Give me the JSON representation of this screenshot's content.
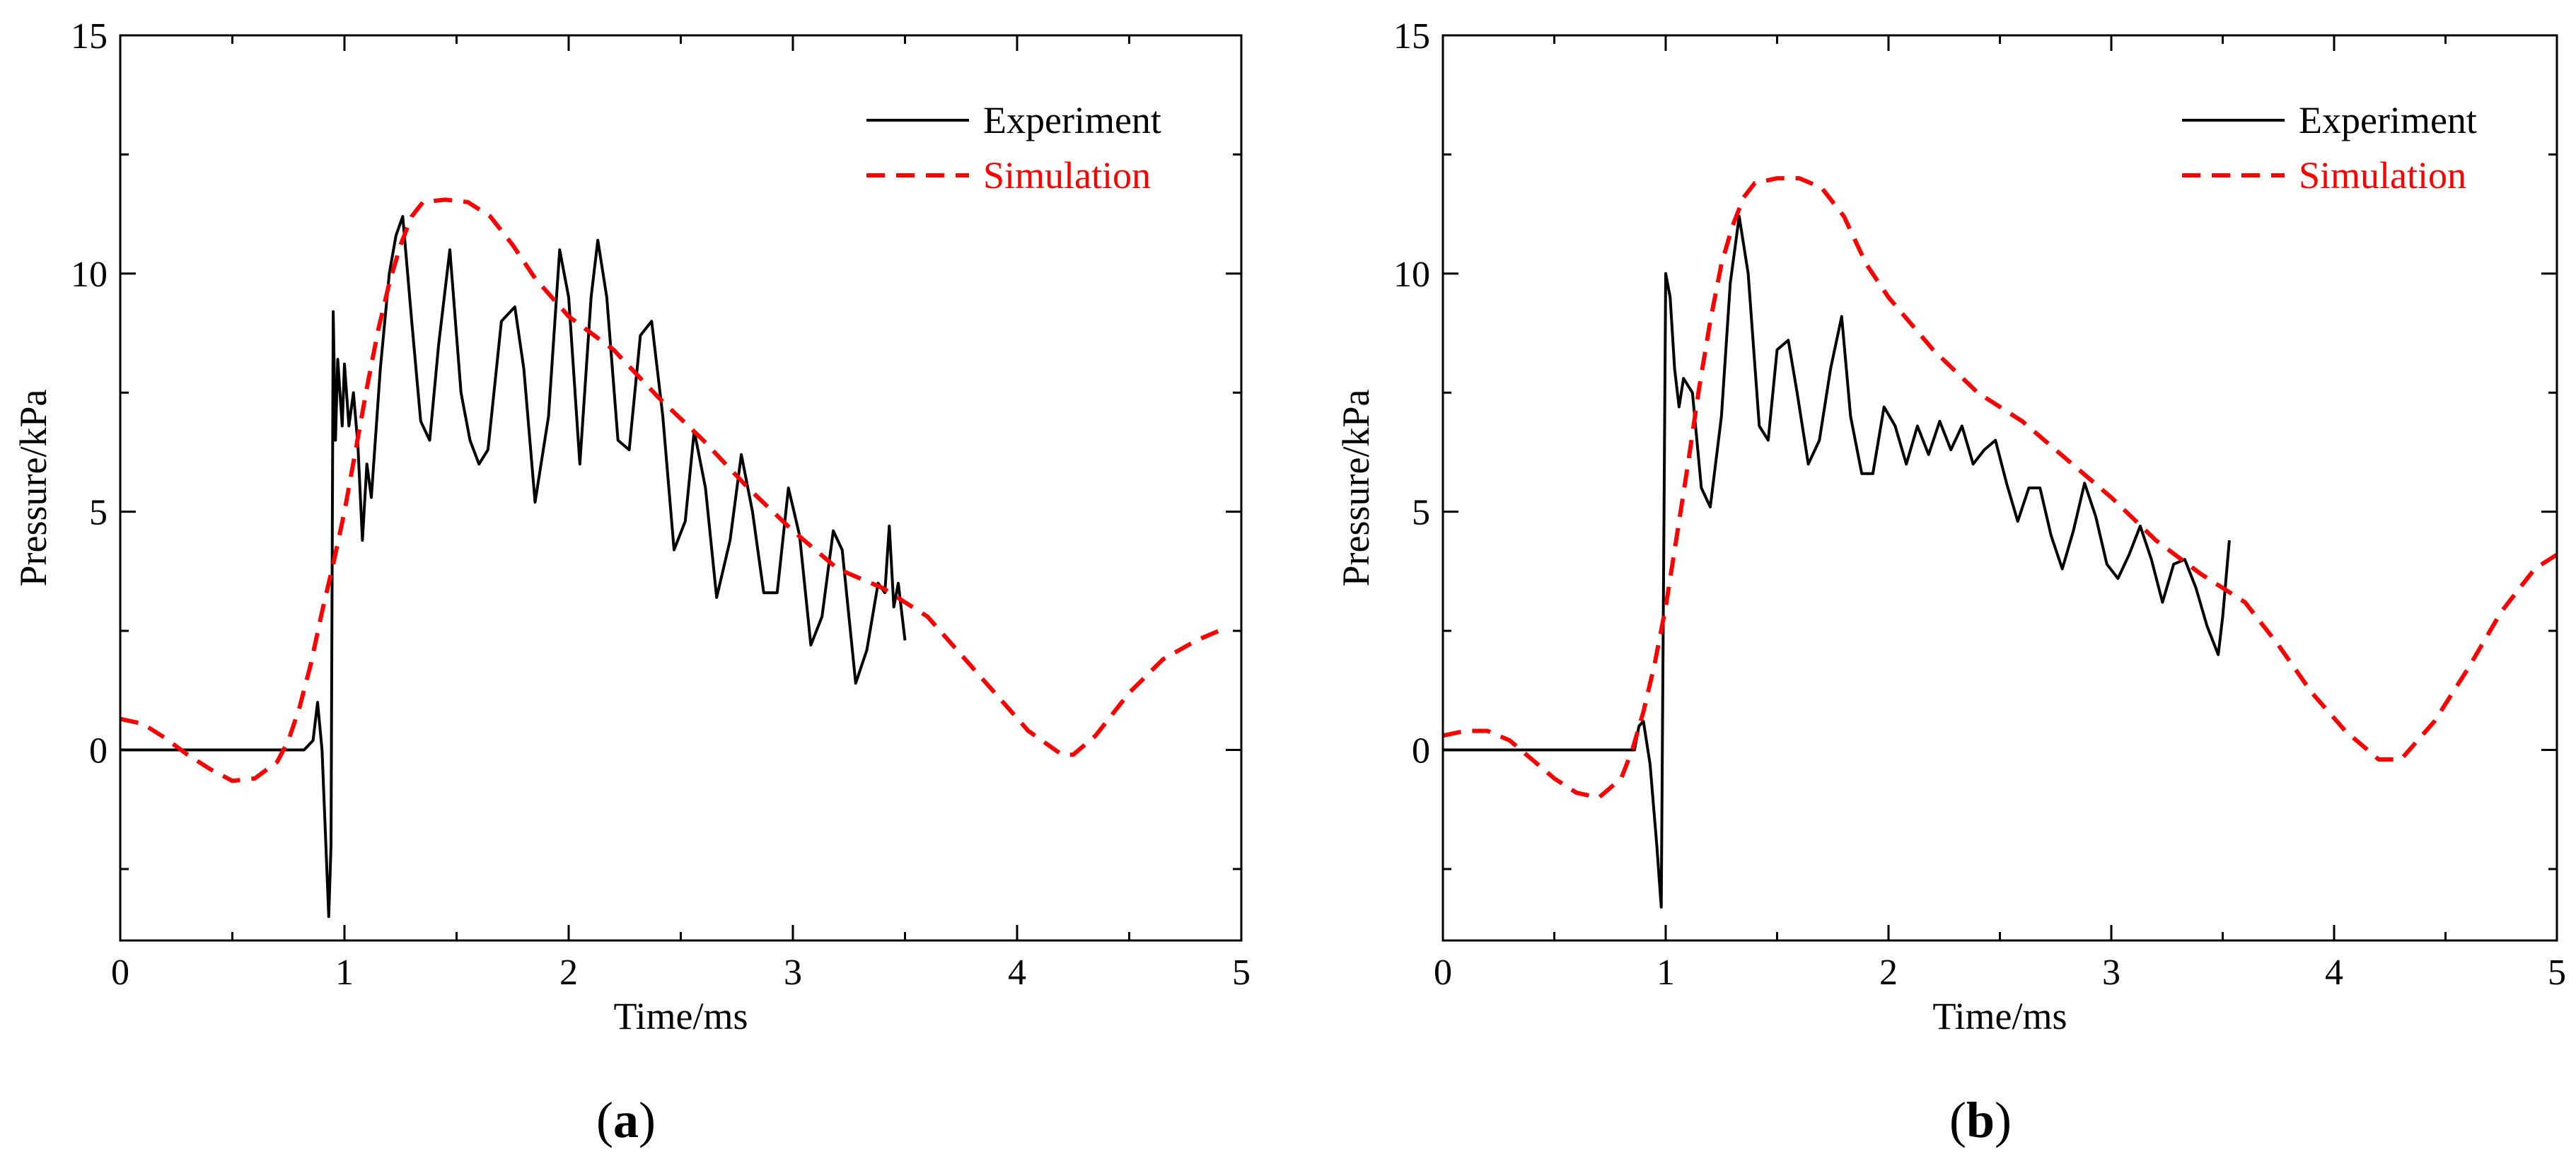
{
  "figure": {
    "panels": [
      {
        "caption_letter": "a",
        "xlabel": "Time/ms",
        "ylabel": "Pressure/kPa",
        "xticks": [
          "0",
          "1",
          "2",
          "3",
          "4",
          "5"
        ],
        "yticks": [
          "0",
          "5",
          "10",
          "15"
        ],
        "legend": {
          "experiment": "Experiment",
          "simulation": "Simulation"
        }
      },
      {
        "caption_letter": "b",
        "xlabel": "Time/ms",
        "ylabel": "Pressure/kPa",
        "xticks": [
          "0",
          "1",
          "2",
          "3",
          "4",
          "5"
        ],
        "yticks": [
          "0",
          "5",
          "10",
          "15"
        ],
        "legend": {
          "experiment": "Experiment",
          "simulation": "Simulation"
        }
      }
    ]
  },
  "chart_data": [
    {
      "type": "line",
      "title": "",
      "xlabel": "Time/ms",
      "ylabel": "Pressure/kPa",
      "xlim": [
        0,
        5
      ],
      "ylim": [
        -4,
        15
      ],
      "grid": false,
      "legend_position": "top-right",
      "series": [
        {
          "name": "Experiment",
          "color": "#000000",
          "style": "solid",
          "x": [
            0,
            0.5,
            0.82,
            0.86,
            0.88,
            0.9,
            0.93,
            0.94,
            0.95,
            0.96,
            0.97,
            0.99,
            1.0,
            1.02,
            1.04,
            1.06,
            1.08,
            1.1,
            1.12,
            1.16,
            1.2,
            1.23,
            1.26,
            1.3,
            1.34,
            1.38,
            1.42,
            1.47,
            1.52,
            1.56,
            1.6,
            1.64,
            1.7,
            1.76,
            1.8,
            1.85,
            1.91,
            1.96,
            2.0,
            2.05,
            2.1,
            2.13,
            2.17,
            2.22,
            2.27,
            2.32,
            2.37,
            2.42,
            2.47,
            2.52,
            2.56,
            2.61,
            2.66,
            2.72,
            2.77,
            2.82,
            2.87,
            2.93,
            2.98,
            3.03,
            3.08,
            3.13,
            3.18,
            3.22,
            3.28,
            3.33,
            3.38,
            3.41,
            3.43,
            3.45,
            3.47,
            3.5
          ],
          "y": [
            0,
            0,
            0,
            0.2,
            1.0,
            0.0,
            -3.5,
            -2.0,
            9.2,
            6.5,
            8.2,
            6.8,
            8.1,
            6.8,
            7.5,
            6.4,
            4.4,
            6.0,
            5.3,
            8.0,
            10.0,
            10.8,
            11.2,
            9.0,
            6.9,
            6.5,
            8.5,
            10.5,
            7.5,
            6.5,
            6.0,
            6.3,
            9.0,
            9.3,
            8.0,
            5.2,
            7.0,
            10.5,
            9.5,
            6.0,
            9.5,
            10.7,
            9.5,
            6.5,
            6.3,
            8.7,
            9.0,
            7.0,
            4.2,
            4.8,
            6.7,
            5.5,
            3.2,
            4.4,
            6.2,
            5.0,
            3.3,
            3.3,
            5.5,
            4.5,
            2.2,
            2.8,
            4.6,
            4.2,
            1.4,
            2.1,
            3.5,
            3.3,
            4.7,
            3.0,
            3.5,
            2.3
          ]
        },
        {
          "name": "Simulation",
          "color": "#ff0000",
          "style": "dashed",
          "x": [
            0,
            0.1,
            0.2,
            0.3,
            0.4,
            0.5,
            0.6,
            0.7,
            0.75,
            0.8,
            0.85,
            0.9,
            0.95,
            1.0,
            1.05,
            1.1,
            1.15,
            1.2,
            1.25,
            1.3,
            1.35,
            1.45,
            1.55,
            1.65,
            1.75,
            1.85,
            2.0,
            2.2,
            2.4,
            2.6,
            2.8,
            3.0,
            3.2,
            3.4,
            3.6,
            3.75,
            3.9,
            4.05,
            4.2,
            4.25,
            4.35,
            4.5,
            4.65,
            4.8,
            4.9
          ],
          "y": [
            0.65,
            0.55,
            0.25,
            -0.1,
            -0.4,
            -0.65,
            -0.6,
            -0.25,
            0.2,
            0.9,
            1.8,
            2.9,
            3.9,
            5.0,
            6.3,
            7.6,
            8.8,
            9.8,
            10.6,
            11.2,
            11.5,
            11.55,
            11.5,
            11.2,
            10.6,
            9.9,
            9.1,
            8.4,
            7.4,
            6.5,
            5.5,
            4.6,
            3.8,
            3.4,
            2.8,
            2.0,
            1.2,
            0.4,
            -0.1,
            -0.1,
            0.3,
            1.2,
            1.9,
            2.3,
            2.5
          ]
        }
      ]
    },
    {
      "type": "line",
      "title": "",
      "xlabel": "Time/ms",
      "ylabel": "Pressure/kPa",
      "xlim": [
        0,
        5
      ],
      "ylim": [
        -4,
        15
      ],
      "grid": false,
      "legend_position": "top-right",
      "series": [
        {
          "name": "Experiment",
          "color": "#000000",
          "style": "solid",
          "x": [
            0,
            0.5,
            0.86,
            0.88,
            0.9,
            0.93,
            0.96,
            0.98,
            1.0,
            1.02,
            1.04,
            1.06,
            1.08,
            1.12,
            1.16,
            1.2,
            1.25,
            1.29,
            1.33,
            1.37,
            1.42,
            1.46,
            1.5,
            1.55,
            1.59,
            1.64,
            1.69,
            1.74,
            1.79,
            1.83,
            1.88,
            1.93,
            1.98,
            2.03,
            2.08,
            2.13,
            2.18,
            2.23,
            2.28,
            2.33,
            2.38,
            2.43,
            2.48,
            2.53,
            2.58,
            2.63,
            2.68,
            2.73,
            2.78,
            2.83,
            2.88,
            2.93,
            2.98,
            3.03,
            3.08,
            3.13,
            3.18,
            3.23,
            3.28,
            3.33,
            3.38,
            3.43,
            3.48,
            3.5,
            3.53
          ],
          "y": [
            0,
            0,
            0,
            0.5,
            0.6,
            -0.3,
            -2.0,
            -3.3,
            10.0,
            9.5,
            8.0,
            7.2,
            7.8,
            7.5,
            5.5,
            5.1,
            7.0,
            9.8,
            11.2,
            10.0,
            6.8,
            6.5,
            8.4,
            8.6,
            7.5,
            6.0,
            6.5,
            8.0,
            9.1,
            7.0,
            5.8,
            5.8,
            7.2,
            6.8,
            6.0,
            6.8,
            6.2,
            6.9,
            6.3,
            6.8,
            6.0,
            6.3,
            6.5,
            5.6,
            4.8,
            5.5,
            5.5,
            4.5,
            3.8,
            4.6,
            5.6,
            4.9,
            3.9,
            3.6,
            4.1,
            4.7,
            4.0,
            3.1,
            3.9,
            4.0,
            3.4,
            2.6,
            2.0,
            2.8,
            4.4
          ]
        },
        {
          "name": "Simulation",
          "color": "#ff0000",
          "style": "dashed",
          "x": [
            0,
            0.1,
            0.2,
            0.3,
            0.4,
            0.5,
            0.6,
            0.7,
            0.8,
            0.85,
            0.9,
            0.95,
            1.0,
            1.05,
            1.1,
            1.15,
            1.2,
            1.25,
            1.3,
            1.35,
            1.4,
            1.5,
            1.6,
            1.7,
            1.8,
            1.9,
            2.0,
            2.2,
            2.4,
            2.6,
            2.8,
            3.0,
            3.2,
            3.4,
            3.6,
            3.75,
            3.9,
            4.05,
            4.2,
            4.3,
            4.45,
            4.6,
            4.75,
            4.9,
            5.0
          ],
          "y": [
            0.3,
            0.4,
            0.4,
            0.2,
            -0.2,
            -0.6,
            -0.9,
            -1.0,
            -0.6,
            0.0,
            0.8,
            1.8,
            3.0,
            4.5,
            6.0,
            7.6,
            9.0,
            10.2,
            11.0,
            11.6,
            11.9,
            12.0,
            12.0,
            11.8,
            11.2,
            10.2,
            9.5,
            8.4,
            7.5,
            6.9,
            6.1,
            5.3,
            4.4,
            3.7,
            3.1,
            2.2,
            1.2,
            0.4,
            -0.2,
            -0.2,
            0.6,
            1.7,
            2.9,
            3.8,
            4.1
          ]
        }
      ]
    }
  ]
}
